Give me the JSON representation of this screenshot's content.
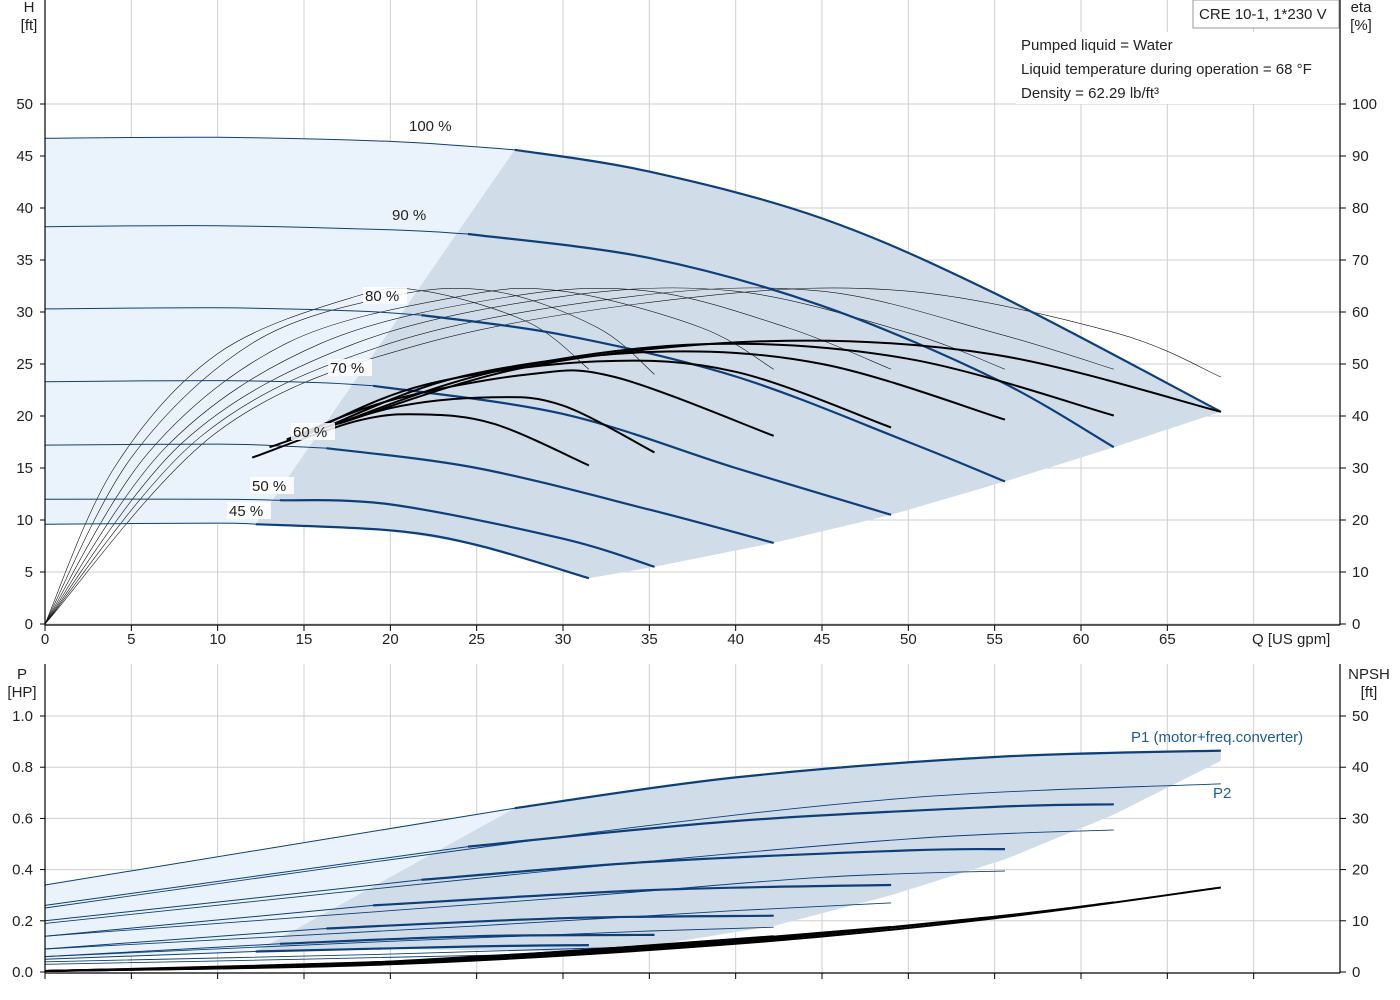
{
  "chart_data": [
    {
      "type": "line",
      "panel": "head-efficiency",
      "model": "CRE 10-1, 1*230 V",
      "info": [
        "Pumped liquid = Water",
        "Liquid temperature during operation = 68 °F",
        "Density = 62.29 lb/ft³"
      ],
      "xlabel": "Q [US gpm]",
      "ylabel_left": [
        "H",
        "[ft]"
      ],
      "ylabel_right": [
        "eta",
        "[%]"
      ],
      "xlim": [
        0,
        75
      ],
      "ylim_left": [
        0,
        50
      ],
      "ylim_right": [
        0,
        100
      ],
      "xticks": [
        0,
        5,
        10,
        15,
        20,
        25,
        30,
        35,
        40,
        45,
        50,
        55,
        60,
        65
      ],
      "yticks_left": [
        0,
        5,
        10,
        15,
        20,
        25,
        30,
        35,
        40,
        45,
        50
      ],
      "yticks_right": [
        0,
        10,
        20,
        30,
        40,
        50,
        60,
        70,
        80,
        90,
        100
      ],
      "grid": true,
      "colors": {
        "curve": "#0d3f7a",
        "region": "#d0dce8",
        "region_light": "#eaf3fb",
        "eff": "#000000"
      },
      "head_curves": [
        {
          "label": "100 %",
          "x": [
            0,
            10,
            20,
            27.2,
            35,
            45,
            55,
            68.1
          ],
          "y": [
            46.7,
            46.8,
            46.4,
            45.6,
            43.5,
            39.0,
            31.8,
            20.4
          ]
        },
        {
          "label": "90 %",
          "x": [
            0,
            10,
            20,
            24.5,
            35,
            45,
            55,
            61.9
          ],
          "y": [
            38.2,
            38.3,
            37.9,
            37.5,
            35.2,
            30.6,
            23.6,
            17.0
          ]
        },
        {
          "label": "80 %",
          "x": [
            0,
            10,
            18,
            21.8,
            30,
            40,
            50,
            55.6
          ],
          "y": [
            30.3,
            30.4,
            30.1,
            29.7,
            27.8,
            23.8,
            17.5,
            13.7
          ]
        },
        {
          "label": "70 %",
          "x": [
            0,
            10,
            16,
            19.0,
            30,
            40,
            49
          ],
          "y": [
            23.3,
            23.4,
            23.2,
            22.9,
            20.2,
            15.0,
            10.5
          ]
        },
        {
          "label": "60 %",
          "x": [
            0,
            10,
            14,
            16.3,
            25,
            35,
            42.2
          ],
          "y": [
            17.2,
            17.3,
            17.1,
            16.9,
            15.0,
            11.0,
            7.8
          ]
        },
        {
          "label": "50 %",
          "x": [
            0,
            10,
            13.6,
            20,
            30,
            35.3
          ],
          "y": [
            12.0,
            12.0,
            11.9,
            11.5,
            8.2,
            5.5
          ]
        },
        {
          "label": "45 %",
          "x": [
            0,
            10,
            12.2,
            20,
            25,
            31.5
          ],
          "y": [
            9.6,
            9.7,
            9.6,
            9.0,
            7.6,
            4.4
          ]
        }
      ],
      "efficiency_curves": [
        {
          "x": [
            12,
            18,
            21.7,
            26,
            31.5
          ],
          "y": [
            32,
            39,
            40.3,
            38.5,
            30.5
          ]
        },
        {
          "x": [
            13,
            20,
            26,
            30,
            35.3
          ],
          "y": [
            34,
            41.5,
            43.6,
            42,
            33
          ]
        },
        {
          "x": [
            14,
            20,
            28,
            33,
            42.2
          ],
          "y": [
            35.5,
            43,
            48,
            47.5,
            36.2
          ]
        },
        {
          "x": [
            15,
            22,
            32,
            40,
            49
          ],
          "y": [
            36.5,
            46,
            50.5,
            48.5,
            37.8
          ]
        },
        {
          "x": [
            16,
            24,
            35,
            45,
            55.6
          ],
          "y": [
            37.5,
            47.5,
            52.3,
            50,
            39.3
          ]
        },
        {
          "x": [
            16.5,
            26,
            38,
            50,
            61.9
          ],
          "y": [
            38,
            48.5,
            53.8,
            51,
            40.1
          ]
        },
        {
          "x": [
            17,
            28,
            42,
            55,
            68.1
          ],
          "y": [
            38.5,
            49.5,
            54.4,
            51.8,
            40.8
          ]
        }
      ],
      "open_efficiency_curves": [
        {
          "x": [
            0,
            4,
            10,
            18,
            22,
            28,
            31.5
          ],
          "y": [
            0,
            30,
            52,
            63,
            64,
            58,
            49
          ]
        },
        {
          "x": [
            0,
            5,
            12,
            20,
            26,
            32,
            35.3
          ],
          "y": [
            0,
            32,
            54,
            63,
            64,
            57,
            48
          ]
        },
        {
          "x": [
            0,
            6,
            14,
            24,
            30,
            38,
            42.2
          ],
          "y": [
            0,
            33,
            54,
            63,
            64,
            57,
            49
          ]
        },
        {
          "x": [
            0,
            7,
            16,
            27,
            35,
            43,
            49
          ],
          "y": [
            0,
            34,
            54,
            63,
            64,
            57,
            49
          ]
        },
        {
          "x": [
            0,
            8,
            18,
            30,
            40,
            50,
            55.6
          ],
          "y": [
            0,
            35,
            54,
            63,
            64,
            56,
            49
          ]
        },
        {
          "x": [
            0,
            9,
            20,
            34,
            45,
            55,
            61.9
          ],
          "y": [
            0,
            36,
            54,
            63,
            64,
            56,
            49
          ]
        },
        {
          "x": [
            0,
            10,
            22,
            38,
            50,
            62,
            68.1
          ],
          "y": [
            0,
            37,
            54,
            63,
            64,
            56,
            47.5
          ]
        }
      ]
    },
    {
      "type": "line",
      "panel": "power-npsh",
      "ylabel_left": [
        "P",
        "[HP]"
      ],
      "ylabel_right": [
        "NPSH",
        "[ft]"
      ],
      "xlim": [
        0,
        75
      ],
      "ylim_left": [
        0,
        1.0
      ],
      "ylim_right": [
        0,
        50
      ],
      "yticks_left": [
        "0.0",
        "0.2",
        "0.4",
        "0.6",
        "0.8",
        "1.0"
      ],
      "yticks_right": [
        0,
        10,
        20,
        30,
        40,
        50
      ],
      "grid": true,
      "label_p1": "P1 (motor+freq.converter)",
      "label_p2": "P2",
      "p1_curves": [
        {
          "x": [
            0,
            27.2,
            40,
            55,
            68.1
          ],
          "y": [
            0.34,
            0.64,
            0.76,
            0.84,
            0.865
          ]
        },
        {
          "x": [
            0,
            24.5,
            40,
            55,
            61.9
          ],
          "y": [
            0.26,
            0.49,
            0.59,
            0.645,
            0.655
          ]
        },
        {
          "x": [
            0,
            21.8,
            35,
            50,
            55.6
          ],
          "y": [
            0.2,
            0.36,
            0.43,
            0.475,
            0.48
          ]
        },
        {
          "x": [
            0,
            19.0,
            35,
            49
          ],
          "y": [
            0.14,
            0.26,
            0.32,
            0.34
          ]
        },
        {
          "x": [
            0,
            16.3,
            30,
            42.2
          ],
          "y": [
            0.09,
            0.17,
            0.21,
            0.22
          ]
        },
        {
          "x": [
            0,
            13.6,
            25,
            35.3
          ],
          "y": [
            0.06,
            0.11,
            0.14,
            0.145
          ]
        },
        {
          "x": [
            0,
            12.2,
            25,
            31.5
          ],
          "y": [
            0.05,
            0.08,
            0.1,
            0.105
          ]
        }
      ],
      "p2_curves": [
        {
          "x": [
            0,
            30,
            50,
            68.1
          ],
          "y": [
            0.25,
            0.53,
            0.68,
            0.735
          ]
        },
        {
          "x": [
            0,
            30,
            50,
            61.9
          ],
          "y": [
            0.19,
            0.4,
            0.52,
            0.555
          ]
        },
        {
          "x": [
            0,
            30,
            45,
            55.6
          ],
          "y": [
            0.14,
            0.29,
            0.37,
            0.395
          ]
        },
        {
          "x": [
            0,
            25,
            40,
            49
          ],
          "y": [
            0.09,
            0.18,
            0.24,
            0.27
          ]
        },
        {
          "x": [
            0,
            20,
            35,
            42.2
          ],
          "y": [
            0.06,
            0.12,
            0.16,
            0.175
          ]
        },
        {
          "x": [
            0,
            20,
            30,
            35.3
          ],
          "y": [
            0.04,
            0.07,
            0.09,
            0.1
          ]
        },
        {
          "x": [
            0,
            15,
            25,
            31.5
          ],
          "y": [
            0.03,
            0.05,
            0.065,
            0.07
          ]
        }
      ],
      "npsh_curves": [
        {
          "x": [
            0,
            20,
            40,
            55,
            68.1
          ],
          "y": [
            0.2,
            1.5,
            5.5,
            10.5,
            16.5
          ]
        },
        {
          "x": [
            0,
            20,
            40,
            55,
            61.9
          ],
          "y": [
            0.2,
            1.6,
            5.8,
            10.8,
            13.6
          ]
        },
        {
          "x": [
            0,
            20,
            40,
            55.6
          ],
          "y": [
            0.2,
            1.7,
            6.0,
            11.0
          ]
        },
        {
          "x": [
            0,
            20,
            35,
            49
          ],
          "y": [
            0.2,
            1.8,
            5.0,
            8.8
          ]
        },
        {
          "x": [
            0,
            20,
            35,
            42.2
          ],
          "y": [
            0.2,
            1.9,
            5.2,
            7.0
          ]
        },
        {
          "x": [
            0,
            20,
            30,
            35.3
          ],
          "y": [
            0.2,
            2.0,
            4.0,
            5.2
          ]
        },
        {
          "x": [
            0,
            15,
            25,
            31.5
          ],
          "y": [
            0.2,
            1.3,
            3.0,
            4.2
          ]
        }
      ]
    }
  ]
}
